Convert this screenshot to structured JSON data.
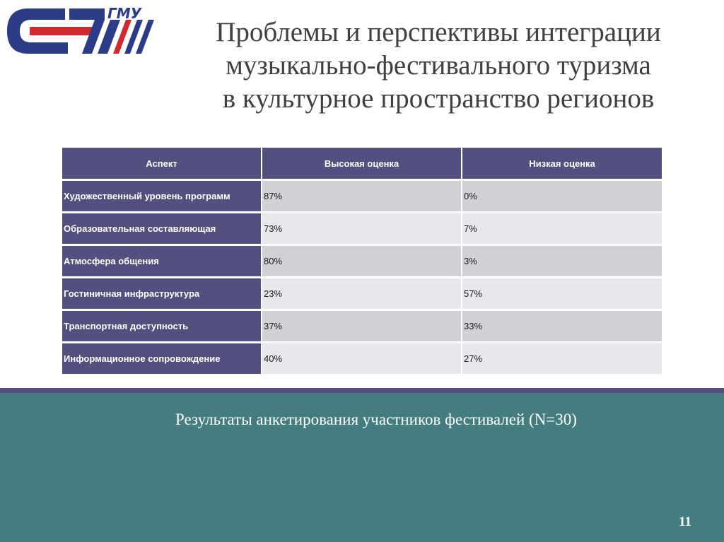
{
  "title": {
    "line1": "Проблемы и перспективы интеграции",
    "line2": "музыкально-фестивального туризма",
    "line3": "в культурное пространство регионов"
  },
  "logo": {
    "text": "ГМУ",
    "icon": "university-logo"
  },
  "table": {
    "headers": [
      "Аспект",
      "Высокая оценка",
      "Низкая оценка"
    ],
    "rows": [
      {
        "aspect": "Художественный уровень программ",
        "high": "87%",
        "low": "0%"
      },
      {
        "aspect": "Образовательная составляющая",
        "high": "73%",
        "low": "7%"
      },
      {
        "aspect": "Атмосфера общения",
        "high": "80%",
        "low": "3%"
      },
      {
        "aspect": "Гостиничная инфраструктура",
        "high": "23%",
        "low": "57%"
      },
      {
        "aspect": "Транспортная доступность",
        "high": "37%",
        "low": "33%"
      },
      {
        "aspect": "Информационное сопровождение",
        "high": "40%",
        "low": "27%"
      }
    ]
  },
  "caption": "Результаты анкетирования участников фестивалей (N=30)",
  "page_number": "11",
  "colors": {
    "header_bg": "#53507f",
    "footer_bg": "#437d80",
    "logo_blue": "#2d3c86",
    "logo_red": "#d12a2e"
  }
}
